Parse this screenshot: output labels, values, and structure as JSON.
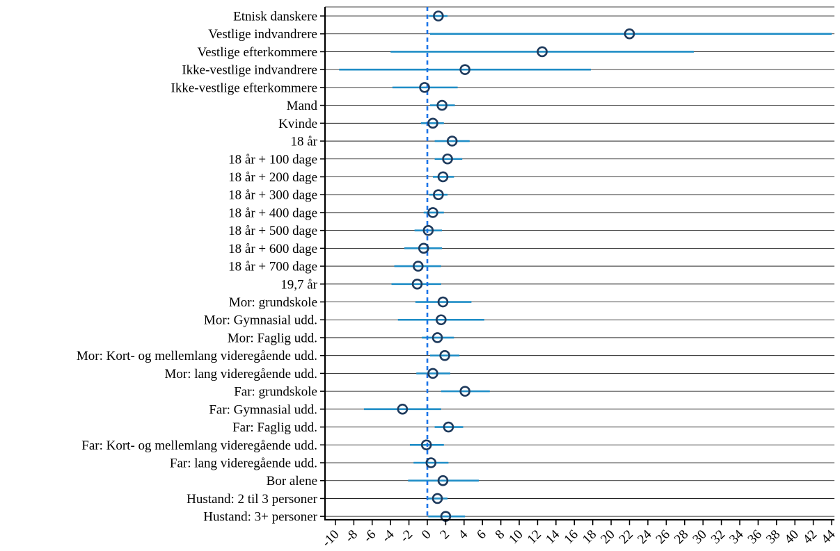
{
  "chart_data": {
    "type": "forest",
    "title": "",
    "xlabel": "",
    "ylabel": "",
    "xlim": [
      -10,
      44
    ],
    "x_ticks": [
      -10,
      -8,
      -6,
      -4,
      -2,
      0,
      2,
      4,
      6,
      8,
      10,
      12,
      14,
      16,
      18,
      20,
      22,
      24,
      26,
      28,
      30,
      32,
      34,
      36,
      38,
      40,
      42,
      44
    ],
    "reference_line": 0,
    "grid": "horizontal",
    "legend": "none",
    "colors": {
      "ci": "#1f8dc6",
      "marker": "#1e3a5c",
      "reference": "#1a73e8"
    },
    "rows": [
      {
        "label": "Etnisk danskere",
        "estimate": 1.2,
        "lower": 0.2,
        "upper": 2.2
      },
      {
        "label": "Vestlige indvandrere",
        "estimate": 22.0,
        "lower": 0.3,
        "upper": 44.0
      },
      {
        "label": "Vestlige efterkommere",
        "estimate": 12.5,
        "lower": -4.0,
        "upper": 29.0
      },
      {
        "label": "Ikke-vestlige indvandrere",
        "estimate": 4.1,
        "lower": -9.6,
        "upper": 17.8
      },
      {
        "label": "Ikke-vestlige efterkommere",
        "estimate": -0.3,
        "lower": -3.8,
        "upper": 3.3
      },
      {
        "label": "Mand",
        "estimate": 1.6,
        "lower": 0.3,
        "upper": 3.0
      },
      {
        "label": "Kvinde",
        "estimate": 0.6,
        "lower": -0.7,
        "upper": 1.8
      },
      {
        "label": "18 år",
        "estimate": 2.7,
        "lower": 0.8,
        "upper": 4.6
      },
      {
        "label": "18 år + 100 dage",
        "estimate": 2.2,
        "lower": 0.8,
        "upper": 3.8
      },
      {
        "label": "18 år + 200 dage",
        "estimate": 1.7,
        "lower": 0.6,
        "upper": 2.9
      },
      {
        "label": "18 år + 300 dage",
        "estimate": 1.2,
        "lower": 0.2,
        "upper": 2.2
      },
      {
        "label": "18 år + 400 dage",
        "estimate": 0.6,
        "lower": -0.4,
        "upper": 1.8
      },
      {
        "label": "18 år + 500 dage",
        "estimate": 0.1,
        "lower": -1.4,
        "upper": 1.6
      },
      {
        "label": "18 år + 600 dage",
        "estimate": -0.4,
        "lower": -2.5,
        "upper": 1.6
      },
      {
        "label": "18 år + 700 dage",
        "estimate": -1.0,
        "lower": -3.6,
        "upper": 1.5
      },
      {
        "label": "19,7 år",
        "estimate": -1.1,
        "lower": -3.9,
        "upper": 1.5
      },
      {
        "label": "Mor: grundskole",
        "estimate": 1.7,
        "lower": -1.3,
        "upper": 4.8
      },
      {
        "label": "Mor: Gymnasial udd.",
        "estimate": 1.5,
        "lower": -3.2,
        "upper": 6.2
      },
      {
        "label": "Mor: Faglig udd.",
        "estimate": 1.1,
        "lower": -0.6,
        "upper": 2.9
      },
      {
        "label": "Mor: Kort- og mellemlang videregående udd.",
        "estimate": 1.9,
        "lower": 0.3,
        "upper": 3.5
      },
      {
        "label": "Mor: lang videregående udd.",
        "estimate": 0.6,
        "lower": -1.2,
        "upper": 2.5
      },
      {
        "label": "Far: grundskole",
        "estimate": 4.1,
        "lower": 1.5,
        "upper": 6.8
      },
      {
        "label": "Far: Gymnasial udd.",
        "estimate": -2.7,
        "lower": -6.9,
        "upper": 1.5
      },
      {
        "label": "Far: Faglig udd.",
        "estimate": 2.3,
        "lower": 0.8,
        "upper": 3.9
      },
      {
        "label": "Far: Kort- og mellemlang videregående udd.",
        "estimate": -0.1,
        "lower": -1.9,
        "upper": 1.8
      },
      {
        "label": "Far: lang videregående udd.",
        "estimate": 0.4,
        "lower": -1.5,
        "upper": 2.3
      },
      {
        "label": "Bor alene",
        "estimate": 1.7,
        "lower": -2.1,
        "upper": 5.6
      },
      {
        "label": "Hustand: 2 til 3 personer",
        "estimate": 1.1,
        "lower": 0.1,
        "upper": 2.2
      },
      {
        "label": "Hustand: 3+ personer",
        "estimate": 2.0,
        "lower": 0.1,
        "upper": 4.1
      }
    ]
  }
}
